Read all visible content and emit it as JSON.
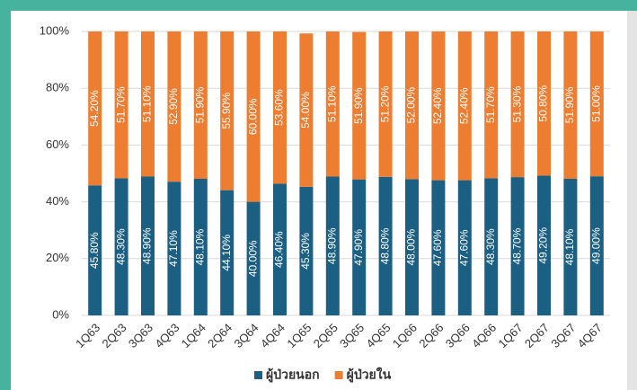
{
  "chart_data": {
    "type": "stacked_bar",
    "categories": [
      "1Q63",
      "2Q63",
      "3Q63",
      "4Q63",
      "1Q64",
      "2Q64",
      "3Q64",
      "4Q64",
      "1Q65",
      "2Q65",
      "3Q65",
      "4Q65",
      "1Q66",
      "2Q66",
      "3Q66",
      "4Q66",
      "1Q67",
      "2Q67",
      "3Q67",
      "4Q67"
    ],
    "series": [
      {
        "name": "ผู้ป่วยนอก",
        "color": "#1b5f83",
        "values": [
          45.8,
          48.3,
          48.9,
          47.1,
          48.1,
          44.1,
          40.0,
          46.4,
          45.3,
          48.9,
          47.9,
          48.8,
          48.0,
          47.6,
          47.6,
          48.3,
          48.7,
          49.2,
          48.1,
          49.0
        ],
        "value_labels": [
          "45.80%",
          "48.30%",
          "48.90%",
          "47.10%",
          "48.10%",
          "44.10%",
          "40.00%",
          "46.40%",
          "45.30%",
          "48.90%",
          "47.90%",
          "48.80%",
          "48.00%",
          "47.60%",
          "47.60%",
          "48.30%",
          "48.70%",
          "49.20%",
          "48.10%",
          "49.00%"
        ]
      },
      {
        "name": "ผู้ป่วยใน",
        "color": "#ed7d31",
        "values": [
          54.2,
          51.7,
          51.1,
          52.9,
          51.9,
          55.9,
          60.0,
          53.6,
          54.0,
          51.1,
          51.9,
          51.2,
          52.0,
          52.4,
          52.4,
          51.7,
          51.3,
          50.8,
          51.9,
          51.0
        ],
        "value_labels": [
          "54.20%",
          "51.70%",
          "51.10%",
          "52.90%",
          "51.90%",
          "55.90%",
          "60.00%",
          "53.60%",
          "54.00%",
          "51.10%",
          "51.90%",
          "51.20%",
          "52.00%",
          "52.40%",
          "52.40%",
          "51.70%",
          "51.30%",
          "50.80%",
          "51.90%",
          "51.00%"
        ]
      }
    ],
    "ylim": [
      0,
      100
    ],
    "yticks": [
      {
        "value": 0,
        "label": "0%"
      },
      {
        "value": 20,
        "label": "20%"
      },
      {
        "value": 40,
        "label": "40%"
      },
      {
        "value": 60,
        "label": "60%"
      },
      {
        "value": 80,
        "label": "80%"
      },
      {
        "value": 100,
        "label": "100%"
      }
    ],
    "grid": true,
    "legend": "bottom"
  }
}
